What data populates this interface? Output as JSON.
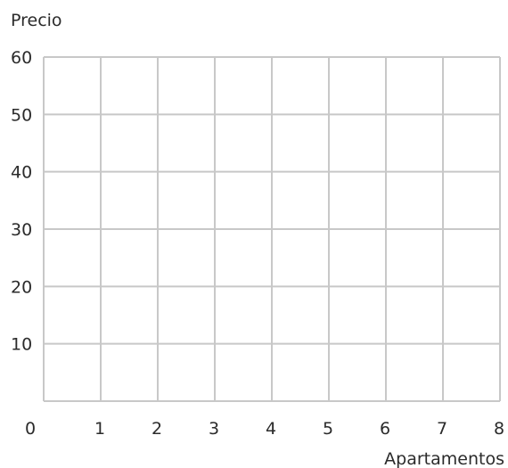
{
  "chart_data": {
    "type": "line",
    "title": "",
    "xlabel": "Apartamentos",
    "ylabel": "Precio",
    "xlim": [
      0,
      8
    ],
    "ylim": [
      0,
      60
    ],
    "x_ticks": [
      1,
      2,
      3,
      4,
      5,
      6,
      7,
      8
    ],
    "y_ticks": [
      10,
      20,
      30,
      40,
      50,
      60
    ],
    "origin_label": "0",
    "grid": true,
    "series": []
  },
  "colors": {
    "grid": "#c8c8c8",
    "text": "#2b2b2b"
  }
}
